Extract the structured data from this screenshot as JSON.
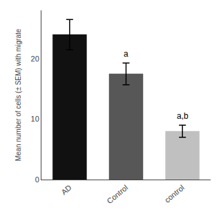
{
  "chart_data": {
    "type": "bar",
    "categories": [
      "AD",
      "Control",
      "control"
    ],
    "values": [
      24.0,
      17.5,
      8.0
    ],
    "errors": [
      2.5,
      1.8,
      1.0
    ],
    "colors": [
      "#111111",
      "#575757",
      "#c0c0c0"
    ],
    "ylabel": "Mean number of cells (± SEM) with migrate",
    "ylim": [
      0,
      28
    ],
    "yticks": [
      0,
      10,
      20
    ],
    "grid": false,
    "annotations": [
      {
        "category": "Control",
        "text": "a"
      },
      {
        "category": "control",
        "text": "a,b"
      }
    ]
  }
}
